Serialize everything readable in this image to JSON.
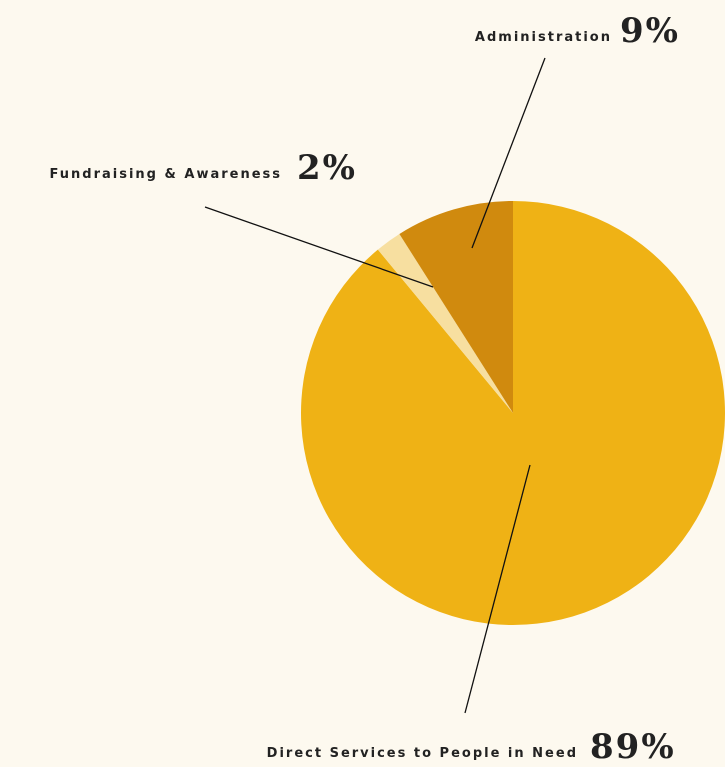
{
  "chart_data": {
    "type": "pie",
    "categories": [
      "Direct Services to People in Need",
      "Fundraising & Awareness",
      "Administration"
    ],
    "values": [
      89,
      2,
      9
    ],
    "value_labels": [
      "89%",
      "2%",
      "9%"
    ],
    "colors": [
      "#EFB215",
      "#F7DFA0",
      "#D08A0E"
    ]
  }
}
